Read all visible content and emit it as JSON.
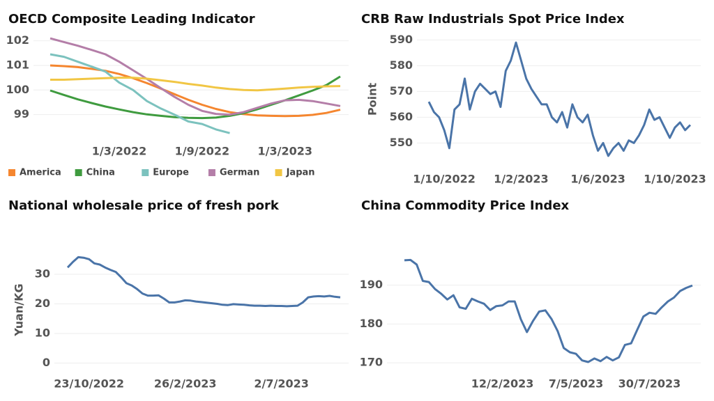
{
  "chart_data": [
    {
      "type": "line",
      "title": "OECD Composite Leading Indicator",
      "categories": [
        null,
        null,
        null,
        null,
        null,
        "1/3/2022",
        null,
        null,
        null,
        null,
        null,
        "1/9/2022",
        null,
        null,
        null,
        null,
        null,
        "1/3/2023",
        null,
        null,
        null,
        null
      ],
      "series": [
        {
          "name": "America",
          "color": "#f5862f",
          "values": [
            101.0,
            100.97,
            100.93,
            100.86,
            100.78,
            100.65,
            100.48,
            100.28,
            100.06,
            99.83,
            99.6,
            99.4,
            99.23,
            99.1,
            99.02,
            98.97,
            98.95,
            98.94,
            98.95,
            98.99,
            99.07,
            99.2
          ]
        },
        {
          "name": "China",
          "color": "#3f9b3f",
          "values": [
            99.98,
            99.8,
            99.62,
            99.47,
            99.33,
            99.21,
            99.1,
            99.01,
            98.95,
            98.9,
            98.87,
            98.86,
            98.88,
            98.95,
            99.06,
            99.22,
            99.4,
            99.58,
            99.78,
            99.98,
            100.2,
            100.55
          ]
        },
        {
          "name": "Europe",
          "color": "#7cc2be",
          "values": [
            101.45,
            101.35,
            101.15,
            100.95,
            100.75,
            100.3,
            100.0,
            99.55,
            99.25,
            99.0,
            98.72,
            98.62,
            98.4,
            98.25,
            null,
            null,
            null,
            null,
            null,
            null,
            null,
            null
          ]
        },
        {
          "name": "German",
          "color": "#b47ea8",
          "values": [
            102.1,
            101.95,
            101.8,
            101.63,
            101.45,
            101.15,
            100.8,
            100.45,
            100.08,
            99.72,
            99.4,
            99.15,
            99.03,
            99.0,
            99.1,
            99.28,
            99.45,
            99.58,
            99.6,
            99.55,
            99.45,
            99.35
          ]
        },
        {
          "name": "Japan",
          "color": "#f1c644",
          "values": [
            100.42,
            100.42,
            100.44,
            100.46,
            100.48,
            100.5,
            100.5,
            100.46,
            100.4,
            100.33,
            100.25,
            100.18,
            100.1,
            100.04,
            100.0,
            99.99,
            100.02,
            100.06,
            100.1,
            100.13,
            100.15,
            100.16
          ]
        }
      ],
      "ylim": [
        98,
        102.3
      ],
      "yticks": [
        99,
        100,
        101,
        102
      ],
      "grid": true,
      "legend": "bottom"
    },
    {
      "type": "line",
      "title": "CRB Raw Industrials Spot Price Index",
      "ylabel": "Point",
      "categories": [
        null,
        null,
        null,
        "1/10/2022",
        null,
        null,
        null,
        null,
        null,
        null,
        null,
        null,
        null,
        null,
        null,
        null,
        null,
        null,
        "1/2/2023",
        null,
        null,
        null,
        null,
        null,
        null,
        null,
        null,
        null,
        null,
        null,
        null,
        null,
        null,
        "1/6/2023",
        null,
        null,
        null,
        null,
        null,
        null,
        null,
        null,
        null,
        null,
        null,
        null,
        null,
        null,
        "1/10/2023",
        null,
        null,
        null
      ],
      "values": [
        566,
        562,
        560,
        555,
        548,
        563,
        565,
        575,
        563,
        570,
        573,
        571,
        569,
        570,
        564,
        578,
        582,
        589,
        582,
        575,
        571,
        568,
        565,
        565,
        560,
        558,
        562,
        556,
        565,
        560,
        558,
        561,
        553,
        547,
        550,
        545,
        548,
        550,
        547,
        551,
        550,
        553,
        557,
        563,
        559,
        560,
        556,
        552,
        556,
        558,
        555,
        557
      ],
      "color": "#4a74a8",
      "ylim": [
        542,
        592
      ],
      "yticks": [
        550,
        560,
        570,
        580,
        590
      ],
      "grid": true
    },
    {
      "type": "line",
      "title": "National wholesale price of fresh pork",
      "ylabel": "Yuan/KG",
      "categories": [
        null,
        null,
        null,
        null,
        "23/10/2022",
        null,
        null,
        null,
        null,
        null,
        null,
        null,
        null,
        null,
        null,
        null,
        null,
        null,
        null,
        null,
        null,
        null,
        "26/2/2023",
        null,
        null,
        null,
        null,
        null,
        null,
        null,
        null,
        null,
        null,
        null,
        null,
        null,
        null,
        null,
        null,
        null,
        "2/7/2023",
        null,
        null,
        null,
        null,
        null,
        null,
        null,
        null,
        null,
        null,
        null
      ],
      "values": [
        32.3,
        34.2,
        35.8,
        35.6,
        35.1,
        33.7,
        33.3,
        32.3,
        31.5,
        30.8,
        29,
        27,
        26.2,
        25,
        23.5,
        22.8,
        22.8,
        22.9,
        21.8,
        20.5,
        20.5,
        20.8,
        21.2,
        21.1,
        20.8,
        20.6,
        20.4,
        20.2,
        20.0,
        19.7,
        19.6,
        19.9,
        19.8,
        19.7,
        19.5,
        19.4,
        19.4,
        19.3,
        19.4,
        19.3,
        19.3,
        19.2,
        19.3,
        19.4,
        20.5,
        22.2,
        22.5,
        22.6,
        22.5,
        22.7,
        22.4,
        22.2
      ],
      "color": "#4a74a8",
      "ylim": [
        -2,
        38
      ],
      "yticks": [
        0,
        10,
        20,
        30
      ],
      "grid": true
    },
    {
      "type": "line",
      "title": "China Commodity Price Index",
      "categories": [
        null,
        null,
        null,
        null,
        null,
        null,
        null,
        null,
        null,
        null,
        null,
        null,
        null,
        null,
        null,
        null,
        "12/2/2023",
        null,
        null,
        null,
        null,
        null,
        null,
        null,
        null,
        null,
        null,
        null,
        "7/5/2023",
        null,
        null,
        null,
        null,
        null,
        null,
        null,
        null,
        null,
        null,
        null,
        "30/7/2023",
        null,
        null,
        null,
        null,
        null,
        null,
        null
      ],
      "values": [
        196.4,
        196.5,
        195.3,
        191.1,
        190.8,
        189,
        187.8,
        186.3,
        187.4,
        184.3,
        183.9,
        186.5,
        185.8,
        185.2,
        183.6,
        184.6,
        184.8,
        185.8,
        185.8,
        181.2,
        177.9,
        180.8,
        183.2,
        183.5,
        181.3,
        178.2,
        173.8,
        172.7,
        172.3,
        170.6,
        170.2,
        171.1,
        170.4,
        171.5,
        170.6,
        171.4,
        174.6,
        175,
        178.5,
        181.9,
        182.9,
        182.6,
        184.3,
        185.8,
        186.8,
        188.5,
        189.3,
        189.9
      ],
      "color": "#4a74a8",
      "ylim": [
        167.5,
        198
      ],
      "yticks": [
        170,
        180,
        190
      ],
      "grid": true
    }
  ]
}
